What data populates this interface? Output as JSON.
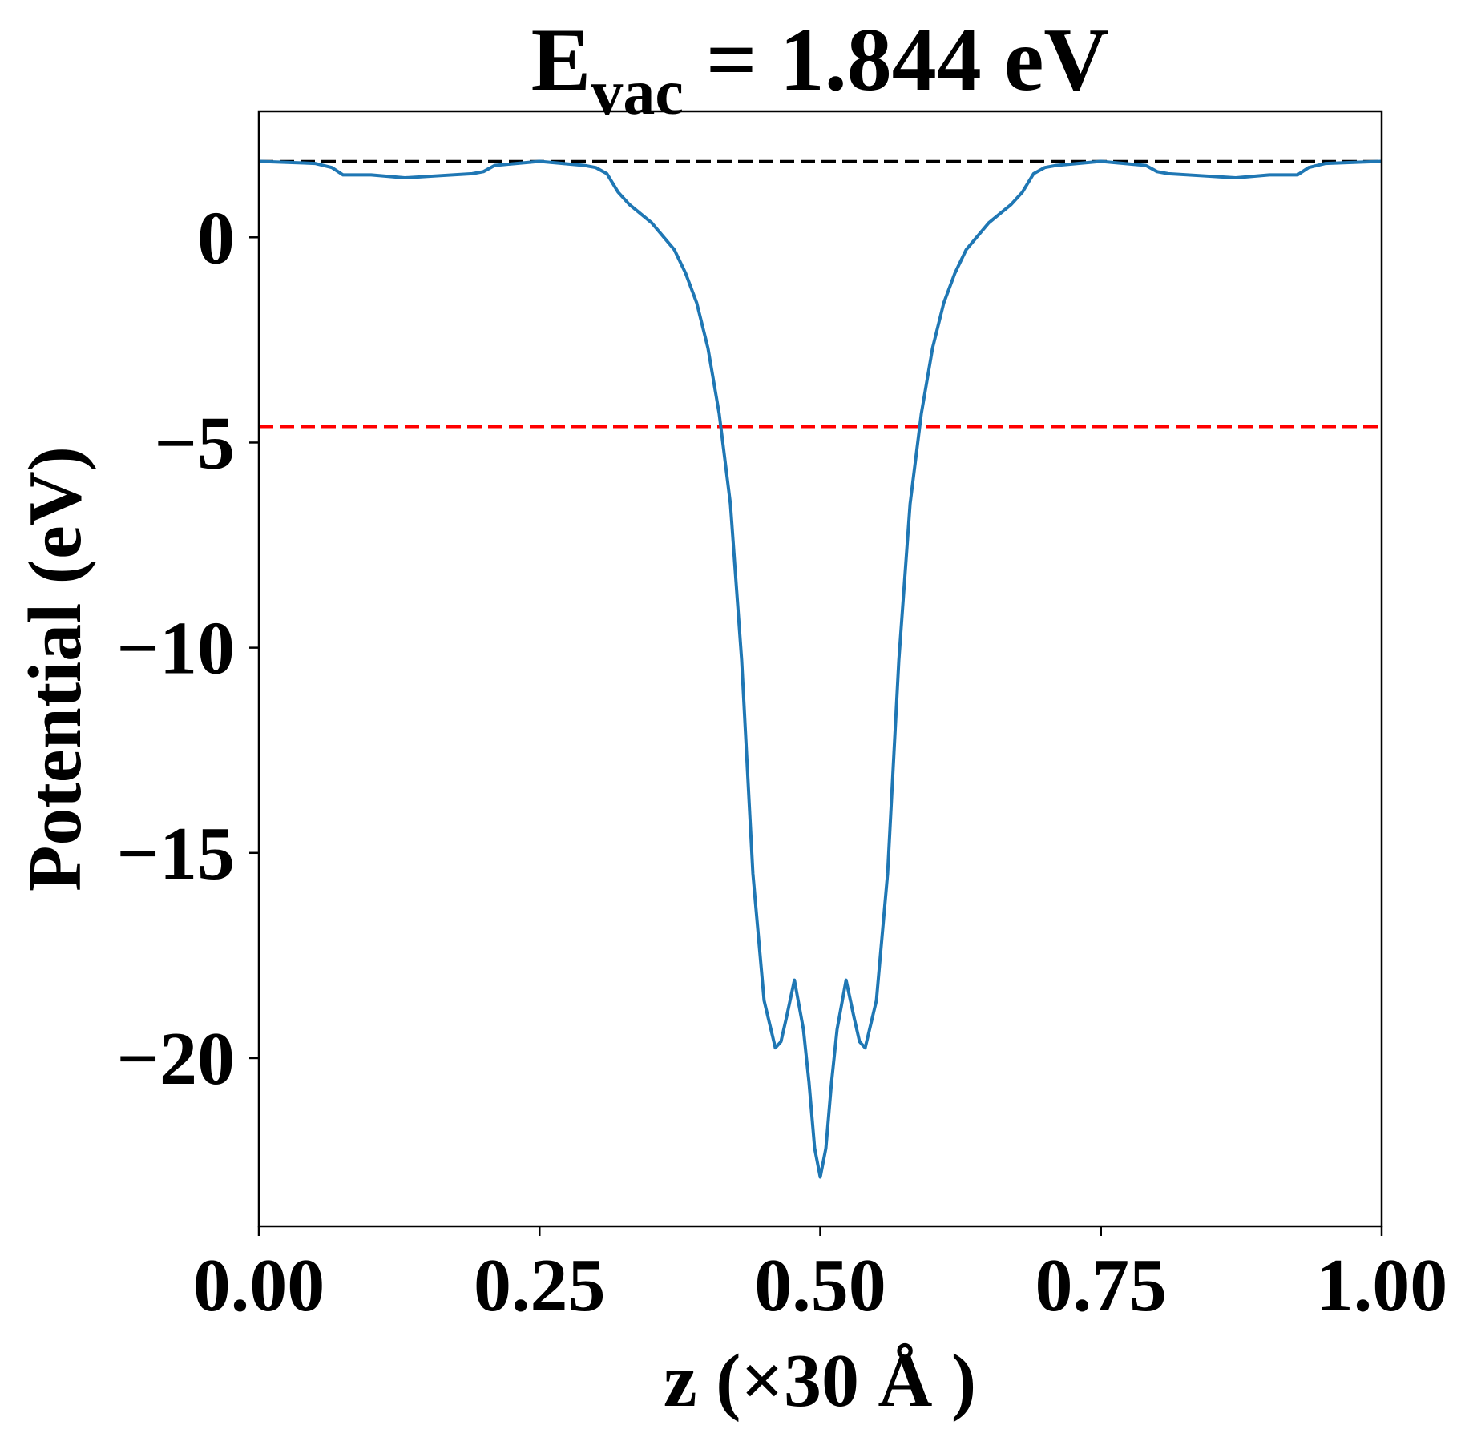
{
  "chart_data": {
    "type": "line",
    "title": {
      "main": "E",
      "subscript": "vac",
      "rest": " = 1.844 eV"
    },
    "xlabel": "z (×30 Å )",
    "ylabel": "Potential (eV)",
    "xlim": [
      0,
      1
    ],
    "ylim": [
      -24.1,
      3.07
    ],
    "xticks": [
      {
        "value": 0,
        "label": "0.00"
      },
      {
        "value": 0.25,
        "label": "0.25"
      },
      {
        "value": 0.5,
        "label": "0.50"
      },
      {
        "value": 0.75,
        "label": "0.75"
      },
      {
        "value": 1,
        "label": "1.00"
      }
    ],
    "yticks": [
      {
        "value": -20,
        "label": "−20"
      },
      {
        "value": -15,
        "label": "−15"
      },
      {
        "value": -10,
        "label": "−10"
      },
      {
        "value": -5,
        "label": "−5"
      },
      0
    ],
    "hlines": [
      {
        "value": 1.844,
        "color": "#000000"
      },
      {
        "value": -4.61,
        "color": "#ff0000"
      }
    ],
    "x": [
      0,
      0.02,
      0.05,
      0.065,
      0.075,
      0.1,
      0.13,
      0.16,
      0.19,
      0.2,
      0.21,
      0.25,
      0.29,
      0.3,
      0.31,
      0.32,
      0.33,
      0.35,
      0.37,
      0.38,
      0.39,
      0.4,
      0.41,
      0.42,
      0.43,
      0.44,
      0.45,
      0.46,
      0.465,
      0.47,
      0.477,
      0.485,
      0.49,
      0.495,
      0.5,
      0.505,
      0.51,
      0.515,
      0.523,
      0.53,
      0.535,
      0.54,
      0.55,
      0.56,
      0.57,
      0.58,
      0.59,
      0.6,
      0.61,
      0.62,
      0.63,
      0.65,
      0.67,
      0.68,
      0.69,
      0.7,
      0.71,
      0.75,
      0.79,
      0.8,
      0.81,
      0.84,
      0.87,
      0.9,
      0.925,
      0.935,
      0.95,
      0.98,
      1
    ],
    "series": [
      {
        "color": "#1f77b4",
        "values": [
          1.85,
          1.83,
          1.8,
          1.7,
          1.52,
          1.52,
          1.45,
          1.5,
          1.55,
          1.6,
          1.75,
          1.85,
          1.75,
          1.7,
          1.55,
          1.1,
          0.8,
          0.35,
          -0.3,
          -0.87,
          -1.6,
          -2.7,
          -4.3,
          -6.5,
          -10.3,
          -15.5,
          -18.6,
          -19.75,
          -19.6,
          -19,
          -18.1,
          -19.3,
          -20.6,
          -22.2,
          -22.9,
          -22.2,
          -20.6,
          -19.3,
          -18.1,
          -19,
          -19.6,
          -19.75,
          -18.6,
          -15.5,
          -10.3,
          -6.5,
          -4.3,
          -2.7,
          -1.6,
          -0.87,
          -0.3,
          0.35,
          0.8,
          1.1,
          1.55,
          1.7,
          1.75,
          1.85,
          1.75,
          1.6,
          1.55,
          1.5,
          1.45,
          1.52,
          1.52,
          1.7,
          1.8,
          1.83,
          1.85
        ]
      }
    ]
  }
}
